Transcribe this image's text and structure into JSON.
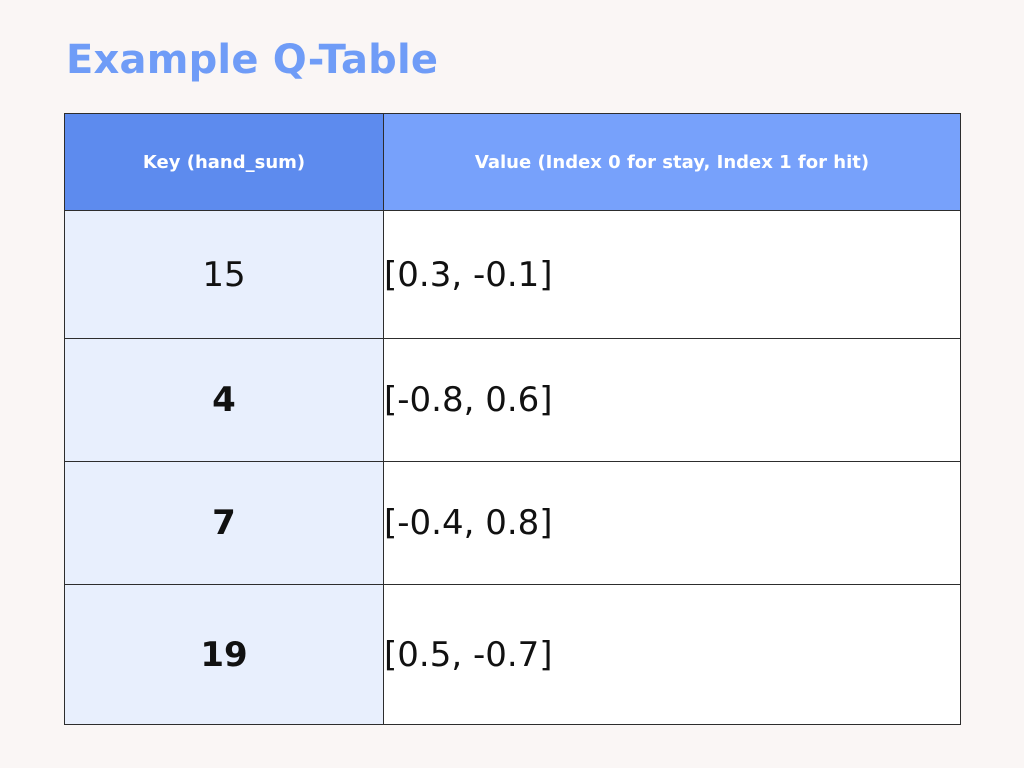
{
  "title": "Example Q-Table",
  "colors": {
    "background": "#faf6f5",
    "title": "#6f9cf7",
    "header_key_bg": "#5d8bee",
    "header_value_bg": "#77a1fb",
    "key_cell_bg": "#e8effd",
    "value_cell_bg": "#ffffff",
    "border": "#2d2d2d"
  },
  "table": {
    "headers": {
      "key": "Key (hand_sum)",
      "value": "Value (Index 0 for stay, Index 1 for hit)"
    },
    "rows": [
      {
        "key": "15",
        "value": "[0.3, -0.1]"
      },
      {
        "key": "4",
        "value": "[-0.8, 0.6]"
      },
      {
        "key": "7",
        "value": "[-0.4, 0.8]"
      },
      {
        "key": "19",
        "value": "[0.5, -0.7]"
      }
    ]
  }
}
